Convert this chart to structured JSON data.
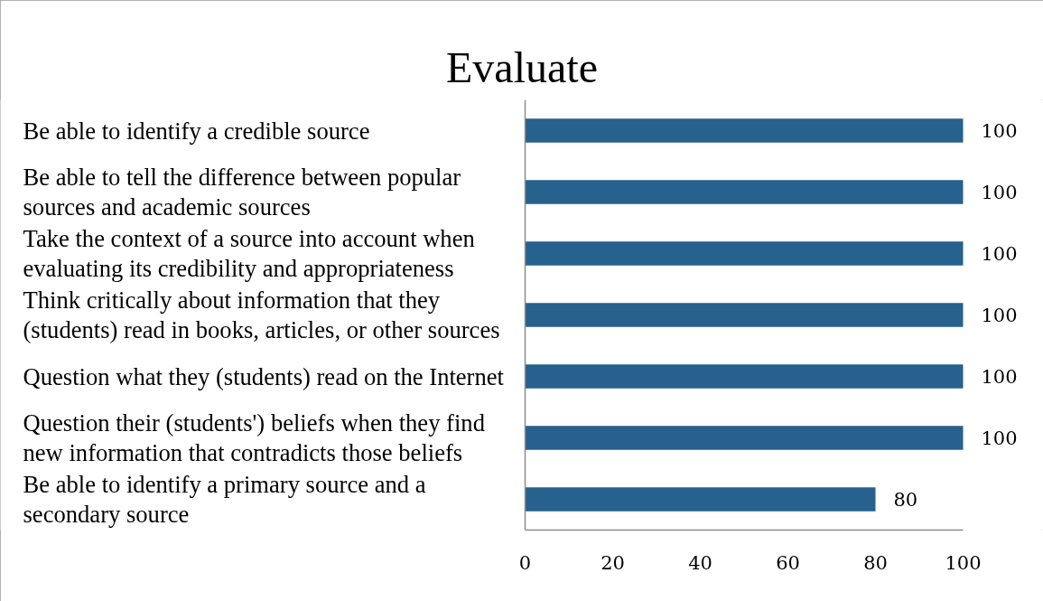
{
  "chart_data": {
    "type": "bar",
    "orientation": "horizontal",
    "title": "Evaluate",
    "categories": [
      "Be able to identify a credible source",
      "Be able to tell the difference between popular sources and academic sources",
      "Take the context of a source into account when evaluating its credibility and appropriateness",
      "Think critically about information that they (students) read in books, articles, or other sources",
      "Question what they (students) read on the Internet",
      "Question their (students') beliefs when they find new information that contradicts those beliefs",
      "Be able to identify a primary source and a secondary source"
    ],
    "values": [
      100,
      100,
      100,
      100,
      100,
      100,
      80
    ],
    "color": "#27618d",
    "xlim": [
      0,
      100
    ],
    "xticks": [
      0,
      20,
      40,
      60,
      80,
      100
    ],
    "data_labels": true,
    "grid": false
  }
}
